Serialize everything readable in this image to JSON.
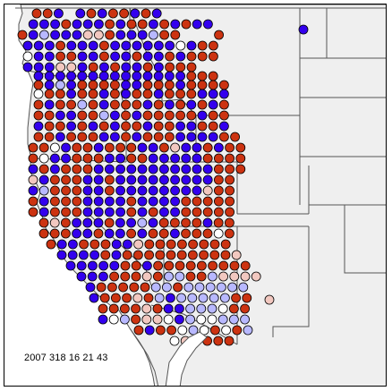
{
  "map": {
    "timestamp": "2007 318 16 21 43",
    "colors": {
      "ocean": "#ffffff",
      "land": "#efefef",
      "border": "#555555",
      "marker_outline": "#000000"
    },
    "legend_categories": {
      "R": {
        "fill": "#cc3311"
      },
      "B": {
        "fill": "#3300ee"
      },
      "P": {
        "fill": "#f2c8c0"
      },
      "L": {
        "fill": "#b8b8ff"
      },
      "W": {
        "fill": "#ffffff"
      }
    }
  }
}
